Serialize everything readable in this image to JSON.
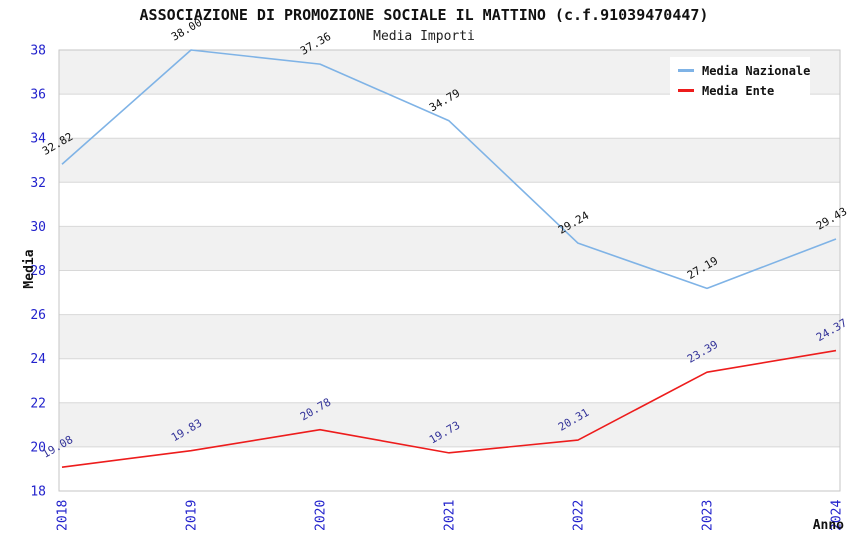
{
  "chart_data": {
    "type": "line",
    "title": "ASSOCIAZIONE DI PROMOZIONE SOCIALE IL MATTINO (c.f.91039470447)",
    "subtitle": "Media Importi",
    "xlabel": "Anno",
    "ylabel": "Media",
    "categories": [
      "2018",
      "2019",
      "2020",
      "2021",
      "2022",
      "2023",
      "2024"
    ],
    "series": [
      {
        "name": "Media Nazionale",
        "color": "#7fb3e6",
        "label_color": "#111111",
        "values": [
          32.82,
          38.0,
          37.36,
          34.79,
          29.24,
          27.19,
          29.43
        ]
      },
      {
        "name": "Media Ente",
        "color": "#ed1c1c",
        "label_color": "#333399",
        "values": [
          19.08,
          19.83,
          20.78,
          19.73,
          20.31,
          23.39,
          24.37
        ]
      }
    ],
    "ylim": [
      18,
      38
    ],
    "ytick_step": 2,
    "yticks": [
      18,
      20,
      22,
      24,
      26,
      28,
      30,
      32,
      34,
      36,
      38
    ],
    "grid": true,
    "band_fill": "#f1f1f1",
    "grid_color": "#d8d8d8",
    "plot_border_color": "#c6c6c6",
    "tick_label_color": "#2222cc",
    "legend_position": "top-right",
    "value_label_decimals": 2
  }
}
